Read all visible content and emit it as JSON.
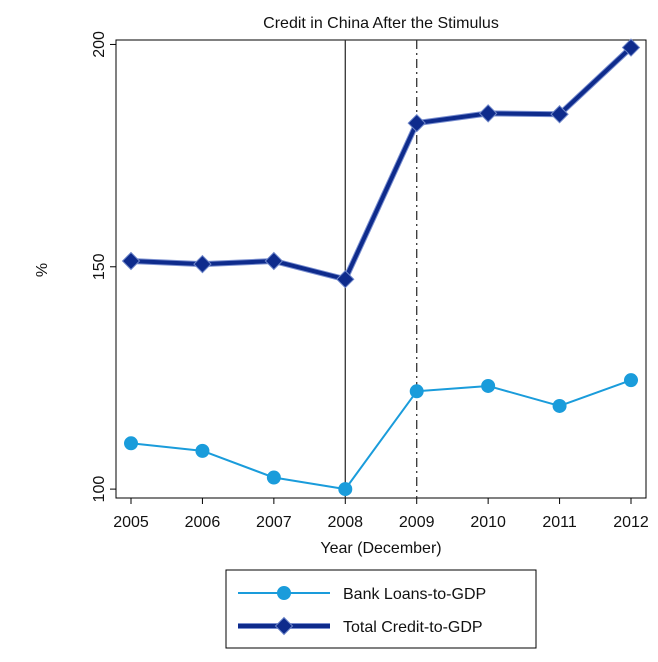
{
  "chart_data": {
    "type": "line",
    "title": "Credit in China After the Stimulus",
    "xlabel": "Year (December)",
    "ylabel": "%",
    "x": [
      "2005",
      "2006",
      "2007",
      "2008",
      "2009",
      "2010",
      "2011",
      "2012"
    ],
    "ylim": [
      98,
      201
    ],
    "yticks": [
      "100",
      "150",
      "200"
    ],
    "grid": false,
    "reference_lines": [
      {
        "x": "2008",
        "style": "solid"
      },
      {
        "x": "2009",
        "style": "dash-dot"
      }
    ],
    "series": [
      {
        "name": "Bank Loans-to-GDP",
        "marker": "circle",
        "color": "#1a9cdb",
        "values": [
          110.3,
          108.6,
          102.6,
          100.0,
          122.0,
          123.2,
          118.7,
          124.5
        ]
      },
      {
        "name": "Total Credit-to-GDP",
        "marker": "diamond",
        "color": "#0e2b8c",
        "values": [
          151.3,
          150.6,
          151.3,
          147.2,
          182.3,
          184.5,
          184.3,
          199.3
        ]
      }
    ],
    "legend_position": "bottom"
  }
}
